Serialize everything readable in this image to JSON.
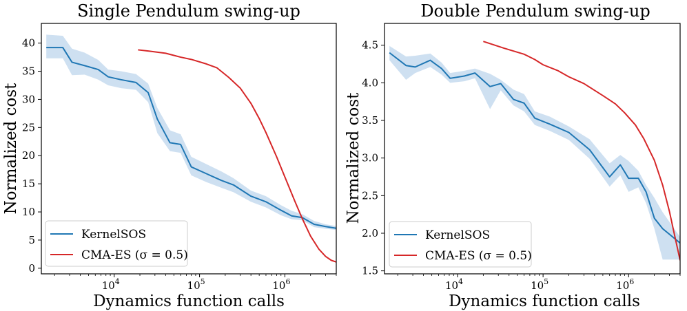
{
  "chart_data": [
    {
      "type": "line",
      "title": "Single Pendulum swing-up",
      "xlabel": "Dynamics function calls",
      "ylabel": "Normalized cost",
      "xscale": "log",
      "xlim": [
        1400,
        4000000
      ],
      "ylim": [
        -1,
        43.5
      ],
      "xticks": [
        {
          "value": 10000,
          "base": "10",
          "exp": "4"
        },
        {
          "value": 100000,
          "base": "10",
          "exp": "5"
        },
        {
          "value": 1000000,
          "base": "10",
          "exp": "6"
        }
      ],
      "yticks": [
        {
          "value": 0,
          "label": "0"
        },
        {
          "value": 5,
          "label": "5"
        },
        {
          "value": 10,
          "label": "10"
        },
        {
          "value": 15,
          "label": "15"
        },
        {
          "value": 20,
          "label": "20"
        },
        {
          "value": 25,
          "label": "25"
        },
        {
          "value": 30,
          "label": "30"
        },
        {
          "value": 35,
          "label": "35"
        },
        {
          "value": 40,
          "label": "40"
        }
      ],
      "legend_position": "bottom-left",
      "series": [
        {
          "name": "KernelSOS",
          "color": "#1f77b4",
          "band_color": "#c6dbef",
          "x": [
            1600,
            2500,
            3200,
            4500,
            6500,
            8500,
            12000,
            18000,
            25000,
            32000,
            45000,
            60000,
            80000,
            120000,
            180000,
            250000,
            400000,
            600000,
            900000,
            1200000,
            1600000,
            2200000,
            3000000,
            4000000
          ],
          "y": [
            39.2,
            39.2,
            36.6,
            36.0,
            35.3,
            34.0,
            33.5,
            33.0,
            31.2,
            26.5,
            22.3,
            22.0,
            18.0,
            16.8,
            15.6,
            14.8,
            12.8,
            11.8,
            10.3,
            9.3,
            9.0,
            7.8,
            7.4,
            7.1
          ],
          "lower": [
            37.3,
            37.3,
            34.3,
            34.4,
            33.5,
            32.5,
            32.0,
            31.7,
            29.5,
            24.0,
            20.8,
            20.5,
            16.5,
            15.3,
            14.3,
            13.5,
            11.8,
            10.8,
            9.4,
            8.7,
            8.5,
            7.3,
            7.0,
            6.8
          ],
          "upper": [
            41.5,
            41.3,
            39.0,
            38.3,
            37.0,
            35.3,
            35.0,
            34.5,
            32.8,
            28.5,
            24.5,
            23.8,
            19.8,
            18.5,
            17.2,
            16.0,
            13.8,
            12.8,
            11.2,
            10.2,
            9.6,
            8.4,
            7.8,
            7.5
          ]
        },
        {
          "name": "CMA-ES (σ = 0.5)",
          "color": "#d62728",
          "x": [
            19000,
            25000,
            40000,
            60000,
            80000,
            120000,
            160000,
            220000,
            300000,
            400000,
            500000,
            600000,
            800000,
            1000000,
            1300000,
            1600000,
            2000000,
            2500000,
            3000000,
            3500000,
            4000000
          ],
          "y": [
            38.8,
            38.6,
            38.2,
            37.5,
            37.1,
            36.3,
            35.6,
            33.9,
            32.0,
            29.3,
            26.6,
            24.1,
            19.8,
            16.2,
            12.0,
            8.8,
            5.7,
            3.4,
            2.1,
            1.4,
            1.1
          ]
        }
      ]
    },
    {
      "type": "line",
      "title": "Double Pendulum swing-up",
      "xlabel": "Dynamics function calls",
      "ylabel": "Normalized cost",
      "xscale": "log",
      "xlim": [
        1400,
        4000000
      ],
      "ylim": [
        1.46,
        4.79
      ],
      "xticks": [
        {
          "value": 10000,
          "base": "10",
          "exp": "4"
        },
        {
          "value": 100000,
          "base": "10",
          "exp": "5"
        },
        {
          "value": 1000000,
          "base": "10",
          "exp": "6"
        }
      ],
      "yticks": [
        {
          "value": 1.5,
          "label": "1.5"
        },
        {
          "value": 2.0,
          "label": "2.0"
        },
        {
          "value": 2.5,
          "label": "2.5"
        },
        {
          "value": 3.0,
          "label": "3.0"
        },
        {
          "value": 3.5,
          "label": "3.5"
        },
        {
          "value": 4.0,
          "label": "4.0"
        },
        {
          "value": 4.5,
          "label": "4.5"
        }
      ],
      "legend_position": "bottom-left",
      "series": [
        {
          "name": "KernelSOS",
          "color": "#1f77b4",
          "band_color": "#c6dbef",
          "x": [
            1600,
            2500,
            3200,
            4800,
            6500,
            8200,
            12000,
            16000,
            24000,
            32000,
            45000,
            60000,
            80000,
            120000,
            200000,
            350000,
            600000,
            800000,
            1000000,
            1300000,
            1600000,
            2000000,
            2500000,
            4000000
          ],
          "y": [
            4.4,
            4.23,
            4.21,
            4.3,
            4.19,
            4.06,
            4.09,
            4.13,
            3.95,
            3.99,
            3.78,
            3.73,
            3.53,
            3.45,
            3.34,
            3.11,
            2.75,
            2.91,
            2.73,
            2.73,
            2.55,
            2.2,
            2.06,
            1.87
          ],
          "lower": [
            4.3,
            4.04,
            4.13,
            4.21,
            4.11,
            4.0,
            4.02,
            4.06,
            3.65,
            3.9,
            3.7,
            3.62,
            3.44,
            3.36,
            3.24,
            2.99,
            2.62,
            2.77,
            2.55,
            2.61,
            2.4,
            2.06,
            1.65,
            1.65
          ],
          "upper": [
            4.49,
            4.35,
            4.36,
            4.39,
            4.27,
            4.13,
            4.16,
            4.19,
            4.12,
            4.04,
            3.91,
            3.85,
            3.62,
            3.55,
            3.42,
            3.25,
            2.93,
            3.04,
            2.96,
            2.83,
            2.64,
            2.47,
            2.28,
            1.95
          ]
        },
        {
          "name": "CMA-ES (σ = 0.5)",
          "color": "#d62728",
          "x": [
            20000,
            35000,
            60000,
            80000,
            100000,
            150000,
            200000,
            300000,
            400000,
            500000,
            700000,
            900000,
            1200000,
            1500000,
            2000000,
            2500000,
            3000000,
            3500000,
            4000000
          ],
          "y": [
            4.55,
            4.46,
            4.38,
            4.31,
            4.24,
            4.16,
            4.08,
            3.99,
            3.9,
            3.83,
            3.72,
            3.6,
            3.44,
            3.26,
            2.97,
            2.64,
            2.29,
            1.94,
            1.64
          ]
        }
      ]
    }
  ]
}
